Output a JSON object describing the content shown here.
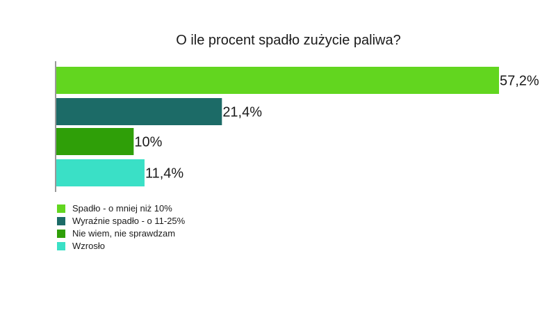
{
  "chart_data": {
    "type": "bar",
    "orientation": "horizontal",
    "title": "O ile procent spadło zużycie paliwa?",
    "categories": [
      "Spadło - o mniej niż 10%",
      "Wyraźnie spadło - o 11-25%",
      "Nie wiem, nie sprawdzam",
      "Wzrosło"
    ],
    "values": [
      57.2,
      21.4,
      10,
      11.4
    ],
    "value_labels": [
      "57,2%",
      "21,4%",
      "10%",
      "11,4%"
    ],
    "unit": "%",
    "colors": [
      "#62d61f",
      "#1c6b67",
      "#2f9f08",
      "#3ae0c6"
    ],
    "xlim": [
      0,
      57.2
    ],
    "grid": false,
    "legend_position": "bottom-left"
  }
}
